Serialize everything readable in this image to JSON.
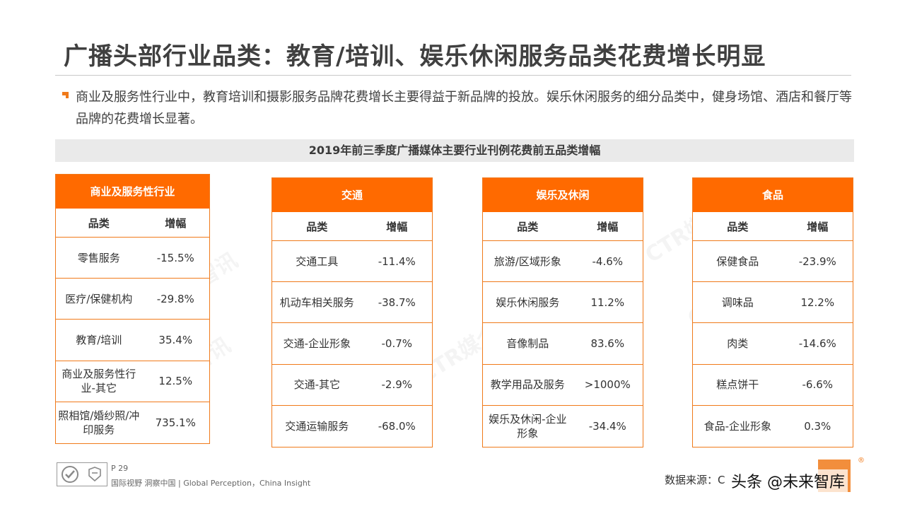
{
  "title": "广播头部行业品类：教育/培训、娱乐休闲服务品类花费增长明显",
  "bullet": "商业及服务性行业中，教育培训和摄影服务品牌花费增长主要得益于新品牌的投放。娱乐休闲服务的细分品类中，健身场馆、酒店和餐厅等品牌的花费增长显著。",
  "band_title": "2019年前三季度广播媒体主要行业刊例花费前五品类增幅",
  "col_category": "品类",
  "col_growth": "增幅",
  "tables": [
    {
      "header": "商业及服务性行业",
      "rows": [
        {
          "category": "零售服务",
          "growth": "-15.5%"
        },
        {
          "category": "医疗/保健机构",
          "growth": "-29.8%"
        },
        {
          "category": "教育/培训",
          "growth": "35.4%"
        },
        {
          "category": "商业及服务性行业-其它",
          "growth": "12.5%"
        },
        {
          "category": "照相馆/婚纱照/冲印服务",
          "growth": "735.1%"
        }
      ]
    },
    {
      "header": "交通",
      "rows": [
        {
          "category": "交通工具",
          "growth": "-11.4%"
        },
        {
          "category": "机动车相关服务",
          "growth": "-38.7%"
        },
        {
          "category": "交通-企业形象",
          "growth": "-0.7%"
        },
        {
          "category": "交通-其它",
          "growth": "-2.9%"
        },
        {
          "category": "交通运输服务",
          "growth": "-68.0%"
        }
      ]
    },
    {
      "header": "娱乐及休闲",
      "rows": [
        {
          "category": "旅游/区域形象",
          "growth": "-4.6%"
        },
        {
          "category": "娱乐休闲服务",
          "growth": "11.2%"
        },
        {
          "category": "音像制品",
          "growth": "83.6%"
        },
        {
          "category": "教学用品及服务",
          "growth": ">1000%"
        },
        {
          "category": "娱乐及休闲-企业形象",
          "growth": "-34.4%"
        }
      ]
    },
    {
      "header": "食品",
      "rows": [
        {
          "category": "保健食品",
          "growth": "-23.9%"
        },
        {
          "category": "调味品",
          "growth": "12.2%"
        },
        {
          "category": "肉类",
          "growth": "-14.6%"
        },
        {
          "category": "糕点饼干",
          "growth": "-6.6%"
        },
        {
          "category": "食品-企业形象",
          "growth": "0.3%"
        }
      ]
    }
  ],
  "watermark": "CTR媒介智讯",
  "footer": {
    "page": "P 29",
    "tagline": "国际视野 洞察中国 | Global Perception，China Insight",
    "source": "数据来源：C",
    "brand": "头条 @未来智库",
    "reg": "®"
  },
  "colors": {
    "accent": "#ff6a00",
    "border": "#f07a1a",
    "band": "#eaeaea"
  }
}
